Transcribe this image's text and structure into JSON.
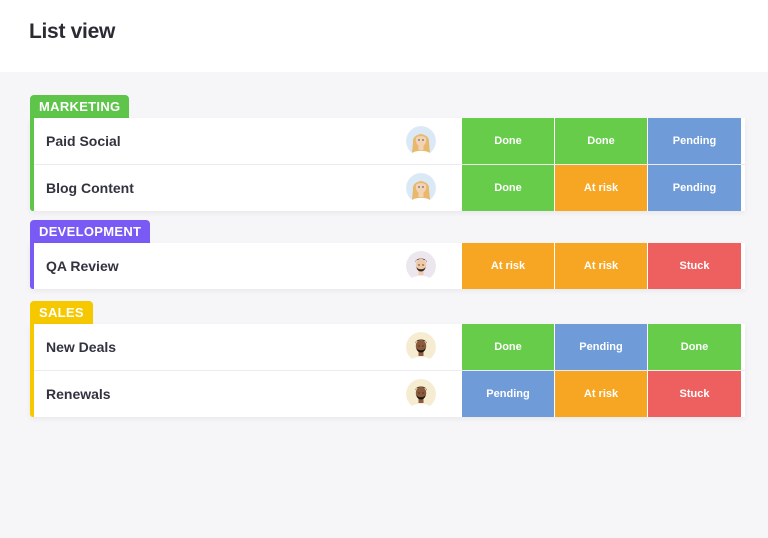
{
  "page": {
    "title": "List view"
  },
  "colors": {
    "Done": "#66cc4a",
    "Pending": "#6f9bd8",
    "At risk": "#f6a623",
    "Stuck": "#ee5f5f"
  },
  "groups": [
    {
      "name": "MARKETING",
      "color": "#5ec44a",
      "rows": [
        {
          "label": "Paid Social",
          "avatar": "woman-avatar",
          "statuses": [
            "Done",
            "Done",
            "Pending"
          ]
        },
        {
          "label": "Blog Content",
          "avatar": "woman-avatar",
          "statuses": [
            "Done",
            "At risk",
            "Pending"
          ]
        }
      ]
    },
    {
      "name": "DEVELOPMENT",
      "color": "#7a5af5",
      "rows": [
        {
          "label": "QA Review",
          "avatar": "man-avatar-light",
          "statuses": [
            "At risk",
            "At risk",
            "Stuck"
          ]
        }
      ]
    },
    {
      "name": "SALES",
      "color": "#f5c800",
      "rows": [
        {
          "label": "New Deals",
          "avatar": "man-avatar-dark",
          "statuses": [
            "Done",
            "Pending",
            "Done"
          ]
        },
        {
          "label": "Renewals",
          "avatar": "man-avatar-dark",
          "statuses": [
            "Pending",
            "At risk",
            "Stuck"
          ]
        }
      ]
    }
  ]
}
